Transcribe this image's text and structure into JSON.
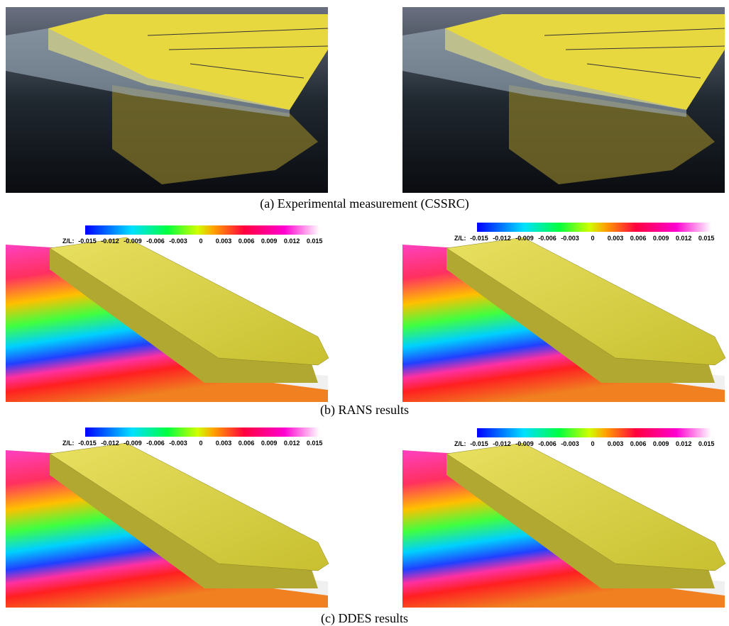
{
  "figure": {
    "colorbar": {
      "label": "Z/L:",
      "ticks": [
        "-0.015",
        "-0.012",
        "-0.009",
        "-0.006",
        "-0.003",
        "0",
        "0.003",
        "0.006",
        "0.009",
        "0.012",
        "0.015"
      ]
    },
    "panels": [
      {
        "caption": "(a) Experimental measurement (CSSRC)"
      },
      {
        "caption": "(b) RANS results"
      },
      {
        "caption": "(c) DDES results"
      }
    ]
  }
}
